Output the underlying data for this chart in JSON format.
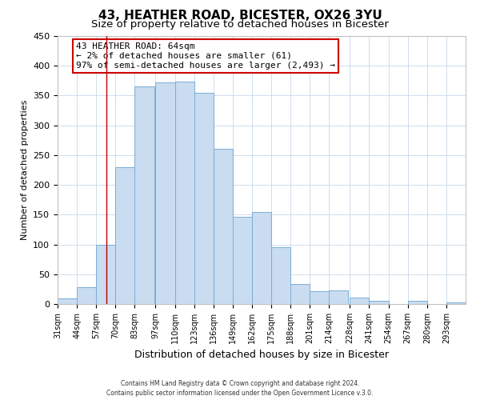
{
  "title": "43, HEATHER ROAD, BICESTER, OX26 3YU",
  "subtitle": "Size of property relative to detached houses in Bicester",
  "xlabel": "Distribution of detached houses by size in Bicester",
  "ylabel": "Number of detached properties",
  "bin_edges": [
    31,
    44,
    57,
    70,
    83,
    97,
    110,
    123,
    136,
    149,
    162,
    175,
    188,
    201,
    214,
    228,
    241,
    254,
    267,
    280,
    293
  ],
  "bar_heights": [
    10,
    28,
    100,
    230,
    365,
    372,
    374,
    355,
    260,
    147,
    154,
    95,
    33,
    21,
    23,
    11,
    5,
    0,
    5,
    0,
    3
  ],
  "bar_fill": "#c9dcf0",
  "bar_edge": "#7aaed4",
  "bar_linewidth": 0.7,
  "ylim": [
    0,
    450
  ],
  "xlim_left": 31,
  "xlim_right": 306,
  "yticks": [
    0,
    50,
    100,
    150,
    200,
    250,
    300,
    350,
    400,
    450
  ],
  "property_x": 64,
  "vline_color": "#bb0000",
  "vline_linewidth": 1.0,
  "annotation_title": "43 HEATHER ROAD: 64sqm",
  "annotation_line1": "← 2% of detached houses are smaller (61)",
  "annotation_line2": "97% of semi-detached houses are larger (2,493) →",
  "annotation_box_edgecolor": "#cc0000",
  "annotation_box_facecolor": "#ffffff",
  "footer_line1": "Contains HM Land Registry data © Crown copyright and database right 2024.",
  "footer_line2": "Contains public sector information licensed under the Open Government Licence v.3.0.",
  "bg_color": "#ffffff",
  "grid_color": "#c8d8ea",
  "grid_linewidth": 0.6,
  "title_fontsize": 11,
  "subtitle_fontsize": 9.5,
  "ylabel_fontsize": 8,
  "xlabel_fontsize": 9,
  "ytick_fontsize": 8,
  "xtick_fontsize": 7,
  "annotation_fontsize": 8,
  "footer_fontsize": 5.5
}
